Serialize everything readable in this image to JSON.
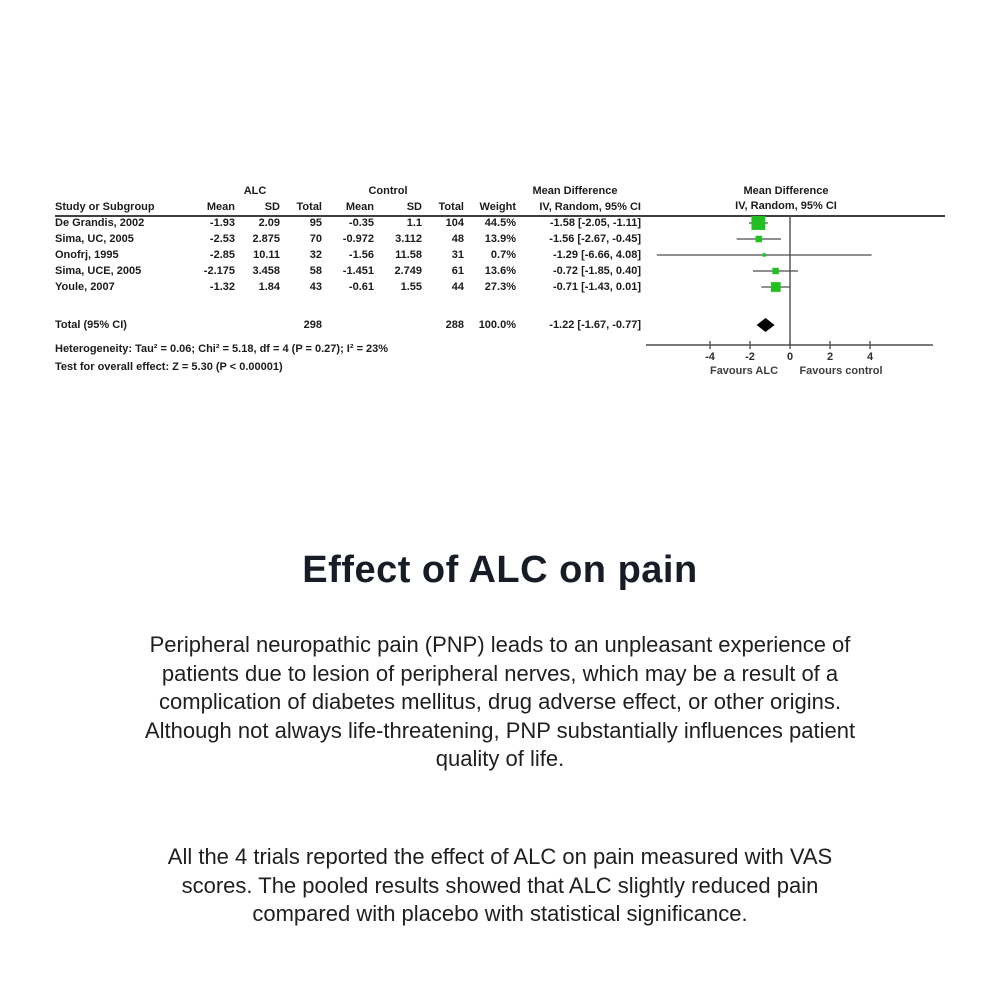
{
  "figure": {
    "title": "Effect of ALC on pain",
    "paragraph1_lines": [
      "Peripheral neuropathic pain (PNP) leads to an unpleasant experience of",
      "patients due to lesion of peripheral nerves, which may be a result of a",
      "complication of diabetes mellitus, drug adverse effect, or other origins.",
      "Although not always life-threatening, PNP substantially influences patient",
      "quality of life."
    ],
    "paragraph2_lines": [
      "All the 4 trials reported the effect of ALC on pain measured with VAS",
      "scores. The pooled results showed that ALC slightly reduced pain",
      "compared with placebo with statistical significance."
    ]
  },
  "forest": {
    "group_headers": {
      "alc": "ALC",
      "control": "Control",
      "md_table": "Mean Difference",
      "md_plot": "Mean Difference"
    },
    "col_headers": {
      "study": "Study or Subgroup",
      "mean": "Mean",
      "sd": "SD",
      "total": "Total",
      "weight": "Weight",
      "ci": "IV, Random, 95% CI",
      "ci_plot": "IV, Random, 95% CI"
    },
    "rows": [
      {
        "study": "De Grandis, 2002",
        "alc_mean": "-1.93",
        "alc_sd": "2.09",
        "alc_total": "95",
        "c_mean": "-0.35",
        "c_sd": "1.1",
        "c_total": "104",
        "weight": "44.5%",
        "ci_text": "-1.58 [-2.05, -1.11]",
        "mean": -1.58,
        "lo": -2.05,
        "hi": -1.11,
        "wpct": 44.5
      },
      {
        "study": "Sima, UC, 2005",
        "alc_mean": "-2.53",
        "alc_sd": "2.875",
        "alc_total": "70",
        "c_mean": "-0.972",
        "c_sd": "3.112",
        "c_total": "48",
        "weight": "13.9%",
        "ci_text": "-1.56 [-2.67, -0.45]",
        "mean": -1.56,
        "lo": -2.67,
        "hi": -0.45,
        "wpct": 13.9
      },
      {
        "study": "Onofrj, 1995",
        "alc_mean": "-2.85",
        "alc_sd": "10.11",
        "alc_total": "32",
        "c_mean": "-1.56",
        "c_sd": "11.58",
        "c_total": "31",
        "weight": "0.7%",
        "ci_text": "-1.29 [-6.66, 4.08]",
        "mean": -1.29,
        "lo": -6.66,
        "hi": 4.08,
        "wpct": 0.7
      },
      {
        "study": "Sima, UCE, 2005",
        "alc_mean": "-2.175",
        "alc_sd": "3.458",
        "alc_total": "58",
        "c_mean": "-1.451",
        "c_sd": "2.749",
        "c_total": "61",
        "weight": "13.6%",
        "ci_text": "-0.72 [-1.85, 0.40]",
        "mean": -0.72,
        "lo": -1.85,
        "hi": 0.4,
        "wpct": 13.6
      },
      {
        "study": "Youle, 2007",
        "alc_mean": "-1.32",
        "alc_sd": "1.84",
        "alc_total": "43",
        "c_mean": "-0.61",
        "c_sd": "1.55",
        "c_total": "44",
        "weight": "27.3%",
        "ci_text": "-0.71 [-1.43, 0.01]",
        "mean": -0.71,
        "lo": -1.43,
        "hi": 0.01,
        "wpct": 27.3
      }
    ],
    "total": {
      "label": "Total (95% CI)",
      "alc_total": "298",
      "c_total": "288",
      "weight": "100.0%",
      "ci_text": "-1.22 [-1.67, -0.77]",
      "mean": -1.22,
      "lo": -1.67,
      "hi": -0.77
    },
    "heterogeneity": "Heterogeneity: Tau² = 0.06; Chi² = 5.18, df = 4 (P = 0.27); I² = 23%",
    "overall_effect": "Test for overall effect: Z = 5.30 (P < 0.00001)",
    "axis": {
      "ticks": [
        -4,
        -2,
        0,
        2,
        4
      ],
      "favours_left": "Favours ALC",
      "favours_right": "Favours control"
    },
    "colors": {
      "marker_green": "#21c021",
      "diamond": "#000000",
      "line": "#4d4d4d"
    }
  },
  "chart_data": {
    "type": "forest",
    "title": "Mean Difference, IV, Random, 95% CI",
    "effect_measure": "Mean Difference (IV, Random, 95% CI)",
    "x_axis": {
      "ticks": [
        -4,
        -2,
        0,
        2,
        4
      ],
      "range_shown": [
        -7,
        7
      ],
      "label_left": "Favours ALC",
      "label_right": "Favours control"
    },
    "studies": [
      {
        "name": "De Grandis, 2002",
        "alc": {
          "mean": -1.93,
          "sd": 2.09,
          "total": 95
        },
        "control": {
          "mean": -0.35,
          "sd": 1.1,
          "total": 104
        },
        "weight_pct": 44.5,
        "md": -1.58,
        "ci": [
          -2.05,
          -1.11
        ]
      },
      {
        "name": "Sima, UC, 2005",
        "alc": {
          "mean": -2.53,
          "sd": 2.875,
          "total": 70
        },
        "control": {
          "mean": -0.972,
          "sd": 3.112,
          "total": 48
        },
        "weight_pct": 13.9,
        "md": -1.56,
        "ci": [
          -2.67,
          -0.45
        ]
      },
      {
        "name": "Onofrj, 1995",
        "alc": {
          "mean": -2.85,
          "sd": 10.11,
          "total": 32
        },
        "control": {
          "mean": -1.56,
          "sd": 11.58,
          "total": 31
        },
        "weight_pct": 0.7,
        "md": -1.29,
        "ci": [
          -6.66,
          4.08
        ]
      },
      {
        "name": "Sima, UCE, 2005",
        "alc": {
          "mean": -2.175,
          "sd": 3.458,
          "total": 58
        },
        "control": {
          "mean": -1.451,
          "sd": 2.749,
          "total": 61
        },
        "weight_pct": 13.6,
        "md": -0.72,
        "ci": [
          -1.85,
          0.4
        ]
      },
      {
        "name": "Youle, 2007",
        "alc": {
          "mean": -1.32,
          "sd": 1.84,
          "total": 43
        },
        "control": {
          "mean": -0.61,
          "sd": 1.55,
          "total": 44
        },
        "weight_pct": 27.3,
        "md": -0.71,
        "ci": [
          -1.43,
          0.01
        ]
      }
    ],
    "total": {
      "alc_total": 298,
      "control_total": 288,
      "weight_pct": 100.0,
      "md": -1.22,
      "ci": [
        -1.67,
        -0.77
      ]
    },
    "heterogeneity": {
      "tau2": 0.06,
      "chi2": 5.18,
      "df": 4,
      "p": 0.27,
      "i2_pct": 23
    },
    "overall_effect": {
      "z": 5.3,
      "p": "< 0.00001"
    }
  }
}
